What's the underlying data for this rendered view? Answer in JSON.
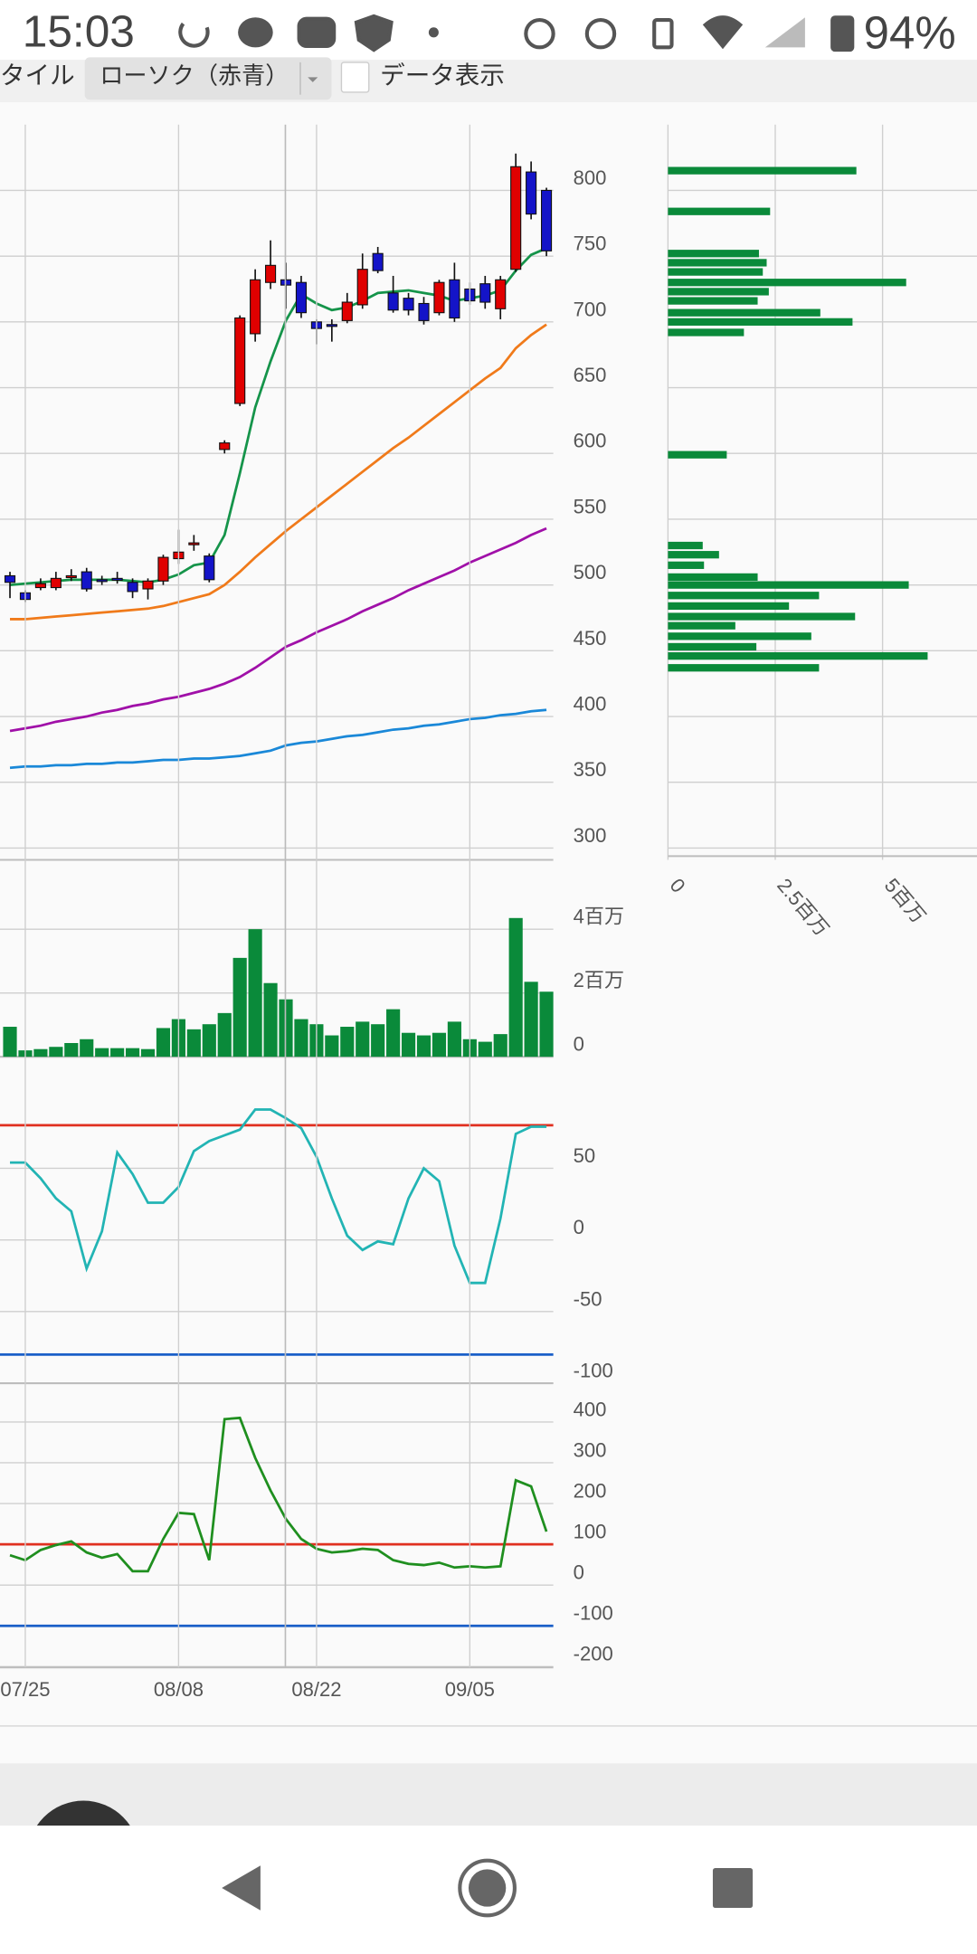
{
  "status_bar": {
    "time": "15:03",
    "battery": "94%"
  },
  "toolbar": {
    "style_label": "タイル",
    "style_value": "ローソク（赤青）",
    "data_toggle_label": "データ表示"
  },
  "chart_data": [
    {
      "type": "candlestick",
      "open": [
        507,
        494,
        498,
        498,
        506,
        510,
        504,
        505,
        502,
        497,
        503,
        520,
        531,
        522,
        603,
        638,
        691,
        730,
        732,
        730,
        700,
        698,
        701,
        713,
        752,
        722,
        718,
        714,
        707,
        732,
        725,
        729,
        710,
        740,
        814,
        800
      ],
      "high": [
        510,
        496,
        505,
        510,
        512,
        513,
        507,
        510,
        505,
        505,
        523,
        542,
        538,
        524,
        610,
        705,
        740,
        762,
        745,
        735,
        702,
        702,
        722,
        752,
        757,
        735,
        722,
        719,
        732,
        745,
        730,
        735,
        735,
        828,
        822,
        802
      ],
      "low": [
        490,
        487,
        496,
        496,
        503,
        495,
        500,
        501,
        490,
        489,
        500,
        516,
        526,
        502,
        600,
        636,
        685,
        725,
        710,
        703,
        683,
        685,
        699,
        710,
        737,
        707,
        705,
        698,
        705,
        700,
        713,
        710,
        702,
        738,
        778,
        750
      ],
      "close": [
        502,
        489,
        501,
        505,
        507,
        497,
        503,
        504,
        495,
        503,
        521,
        525,
        532,
        504,
        608,
        703,
        732,
        743,
        728,
        707,
        695,
        697,
        715,
        740,
        739,
        709,
        709,
        701,
        730,
        703,
        716,
        715,
        732,
        818,
        782,
        754
      ],
      "up_color": "#e00000",
      "down_color": "#1414c8",
      "even_color": "#222222",
      "series": [
        {
          "color": "#15944a",
          "values": [
            500,
            501,
            502,
            503,
            504,
            504,
            504,
            504,
            503,
            502,
            504,
            508,
            515,
            517,
            538,
            585,
            635,
            670,
            701,
            721,
            714,
            709,
            711,
            716,
            722,
            723,
            724,
            722,
            720,
            716,
            718,
            720,
            724,
            739,
            751,
            756
          ]
        },
        {
          "color": "#f07a1a",
          "values": [
            474,
            474,
            475,
            476,
            477,
            478,
            479,
            480,
            481,
            482,
            484,
            487,
            490,
            493,
            500,
            510,
            521,
            531,
            541,
            550,
            559,
            568,
            577,
            586,
            595,
            604,
            612,
            621,
            630,
            639,
            648,
            657,
            665,
            680,
            690,
            698
          ]
        },
        {
          "color": "#a010a8",
          "values": [
            389,
            391,
            393,
            396,
            398,
            400,
            403,
            405,
            408,
            410,
            413,
            415,
            418,
            421,
            425,
            430,
            437,
            445,
            453,
            458,
            464,
            469,
            474,
            480,
            485,
            490,
            496,
            501,
            506,
            511,
            517,
            522,
            527,
            532,
            538,
            543
          ]
        },
        {
          "color": "#1a88d8",
          "values": [
            361,
            362,
            362,
            363,
            363,
            364,
            364,
            365,
            365,
            366,
            367,
            367,
            368,
            368,
            369,
            370,
            372,
            374,
            378,
            380,
            381,
            383,
            385,
            386,
            388,
            390,
            391,
            393,
            394,
            396,
            398,
            399,
            401,
            402,
            404,
            405
          ]
        }
      ],
      "ylim": [
        291,
        850
      ],
      "yticks": [
        300,
        350,
        400,
        450,
        500,
        550,
        600,
        650,
        700,
        750,
        800
      ],
      "grid": true
    },
    {
      "type": "bar",
      "values": [
        940000,
        200000,
        240000,
        310000,
        430000,
        550000,
        270000,
        270000,
        270000,
        240000,
        900000,
        1180000,
        860000,
        1020000,
        1370000,
        3100000,
        4000000,
        2310000,
        1800000,
        1180000,
        1020000,
        670000,
        940000,
        1100000,
        1020000,
        1490000,
        750000,
        670000,
        750000,
        1100000,
        550000,
        470000,
        710000,
        4350000,
        2350000,
        2040000
      ],
      "color": "#0a8a3a",
      "ylim": [
        0,
        5900000
      ],
      "yticks": [
        0,
        {
          "value": 2000000,
          "label": "2百万"
        },
        {
          "value": 4000000,
          "label": "4百万"
        }
      ]
    },
    {
      "type": "line",
      "series": [
        {
          "color": "#22b4b4",
          "values": [
            54,
            54,
            43,
            29,
            20,
            -20,
            6,
            61,
            46,
            26,
            26,
            37,
            62,
            69,
            73,
            77,
            91,
            91,
            85,
            78,
            58,
            29,
            3,
            -7,
            -1,
            -3,
            29,
            50,
            41,
            -4,
            -30,
            -30,
            15,
            74,
            79,
            79
          ]
        }
      ],
      "reference_lines": [
        {
          "value": 80,
          "color": "#e03020"
        },
        {
          "value": -80,
          "color": "#1a5fc8"
        }
      ],
      "ylim": [
        -100,
        100
      ],
      "yticks": [
        50,
        0,
        -50,
        -100
      ]
    },
    {
      "type": "line",
      "series": [
        {
          "color": "#1f8f1f",
          "values": [
            73,
            61,
            86,
            98,
            107,
            80,
            67,
            76,
            34,
            34,
            113,
            177,
            174,
            61,
            407,
            410,
            312,
            232,
            162,
            113,
            89,
            80,
            83,
            89,
            86,
            61,
            52,
            49,
            55,
            43,
            46,
            43,
            46,
            257,
            242,
            131
          ]
        }
      ],
      "reference_lines": [
        {
          "value": 100,
          "color": "#e03020"
        },
        {
          "value": -100,
          "color": "#1a5fc8"
        }
      ],
      "ylim": [
        -202,
        495
      ],
      "yticks": [
        400,
        300,
        200,
        100,
        0,
        -100,
        -200
      ],
      "categories": [
        null,
        "07/25",
        null,
        null,
        null,
        null,
        null,
        null,
        null,
        null,
        null,
        "08/08",
        null,
        null,
        null,
        null,
        null,
        null,
        null,
        null,
        "08/22",
        null,
        null,
        null,
        null,
        null,
        null,
        null,
        null,
        null,
        "09/05",
        null,
        null,
        null,
        null,
        null
      ]
    },
    {
      "type": "hbar",
      "prices": [
        815,
        784,
        752,
        745,
        738,
        730,
        723,
        716,
        707,
        700,
        692,
        599,
        530,
        523,
        515,
        506,
        500,
        492,
        484,
        476,
        469,
        461,
        453,
        446,
        437
      ],
      "values": [
        4390000,
        2380000,
        2120000,
        2300000,
        2210000,
        5550000,
        2350000,
        2090000,
        3550000,
        4300000,
        1770000,
        1370000,
        810000,
        1190000,
        840000,
        2090000,
        5610000,
        3520000,
        2820000,
        4360000,
        1570000,
        3340000,
        2060000,
        6050000,
        3520000
      ],
      "color": "#0a8a3a",
      "ylim": [
        291,
        850
      ],
      "xlim": [
        0,
        7200000
      ],
      "xticks": [
        0,
        {
          "value": 2500000,
          "label": "2.5百万"
        },
        {
          "value": 5000000,
          "label": "5百万"
        }
      ]
    }
  ]
}
